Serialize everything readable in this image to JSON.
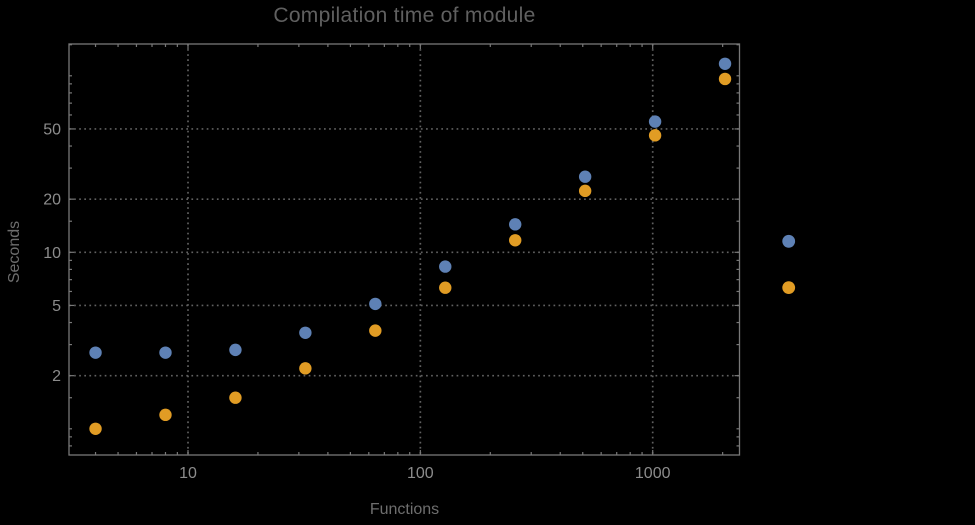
{
  "window": {
    "background": "#000000"
  },
  "title": {
    "text": "Compilation time of module"
  },
  "axes": {
    "x": {
      "label": "Functions",
      "scale": "log",
      "labeled_ticks": [
        10,
        100,
        1000
      ],
      "range": [
        3.1,
        2360
      ]
    },
    "y": {
      "label": "Seconds",
      "scale": "log",
      "labeled_ticks": [
        2,
        5,
        10,
        20,
        50
      ],
      "range": [
        0.71,
        151
      ]
    }
  },
  "colors": {
    "background": "#000000",
    "series1": "#5E81B5",
    "series2": "#E19C24",
    "frame": "#787878",
    "grid": "#616161",
    "tick_label": "#8c8c8c",
    "axis_label": "#6e6e6e",
    "title": "#606060"
  },
  "legend": {
    "position": "right-outside",
    "entries": [
      {
        "name": "series-1",
        "label": "",
        "color": "#5E81B5"
      },
      {
        "name": "series-2",
        "label": "",
        "color": "#E19C24"
      }
    ]
  },
  "chart_data": {
    "type": "scatter",
    "title": "Compilation time of module",
    "xlabel": "Functions",
    "ylabel": "Seconds",
    "xscale": "log",
    "yscale": "log",
    "grid": "dotted lines at labeled ticks only",
    "legend_position": "right-outside, markers visible without text",
    "x": [
      4,
      8,
      16,
      32,
      64,
      128,
      256,
      512,
      1024,
      2048
    ],
    "series": [
      {
        "name": "series-1",
        "color": "#5E81B5",
        "values": [
          2.7,
          2.7,
          2.8,
          3.5,
          5.1,
          8.3,
          14.4,
          26.8,
          55,
          117
        ]
      },
      {
        "name": "series-2",
        "color": "#E19C24",
        "values": [
          1.0,
          1.2,
          1.5,
          2.2,
          3.6,
          6.3,
          11.7,
          22.3,
          46,
          96
        ]
      }
    ],
    "xlim": [
      3.1,
      2360
    ],
    "ylim": [
      0.71,
      151
    ],
    "x_minor_ticks": [
      4,
      5,
      6,
      7,
      8,
      9,
      20,
      30,
      40,
      50,
      60,
      70,
      80,
      90,
      200,
      300,
      400,
      500,
      600,
      700,
      800,
      900,
      2000
    ],
    "y_minor_ticks": [
      0.8,
      0.9,
      1,
      1.5,
      3,
      4,
      6,
      7,
      8,
      9,
      15,
      30,
      40,
      60,
      70,
      80,
      90,
      100,
      150
    ]
  }
}
